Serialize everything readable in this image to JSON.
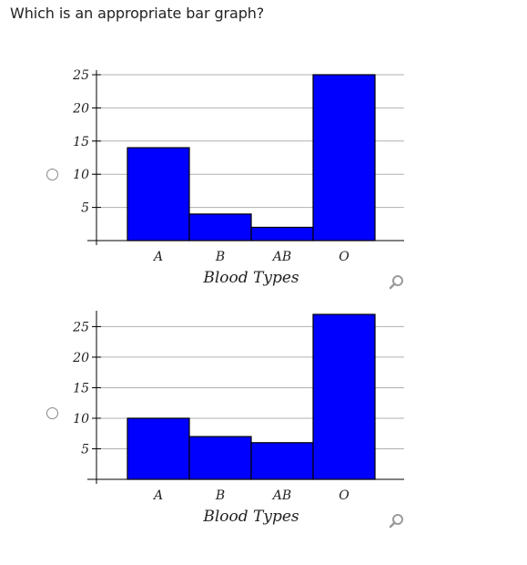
{
  "question": "Which is an appropriate bar graph?",
  "icons": {
    "radio": "radio-unchecked-icon",
    "zoom": "magnifier-icon"
  },
  "colors": {
    "bar": "#0000ff",
    "bar_border": "#000000",
    "grid": "#b0b0b0"
  },
  "options": [
    {
      "chart_data": {
        "type": "bar",
        "categories": [
          "A",
          "B",
          "AB",
          "O"
        ],
        "values": [
          14,
          4,
          2,
          25
        ],
        "xlabel": "Blood Types",
        "ylabel": "",
        "ylim": [
          0,
          25
        ],
        "yticks": [
          5,
          10,
          15,
          20,
          25
        ],
        "grid": true
      }
    },
    {
      "chart_data": {
        "type": "bar",
        "categories": [
          "A",
          "B",
          "AB",
          "O"
        ],
        "values": [
          10,
          7,
          6,
          27
        ],
        "xlabel": "Blood Types",
        "ylabel": "",
        "ylim": [
          0,
          27
        ],
        "yticks": [
          5,
          10,
          15,
          20,
          25
        ],
        "grid": true
      }
    }
  ]
}
